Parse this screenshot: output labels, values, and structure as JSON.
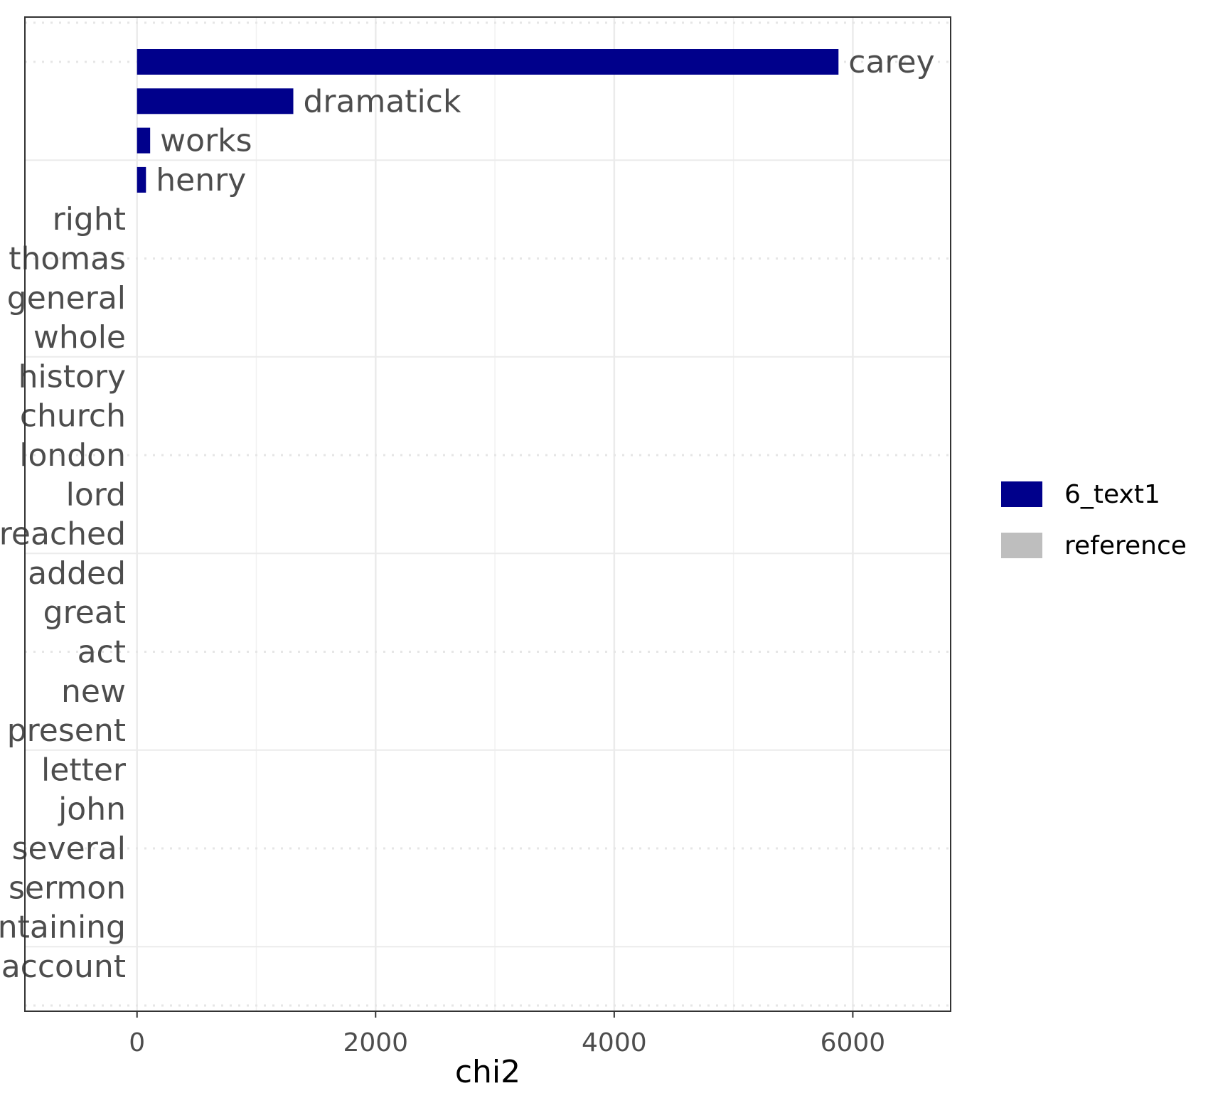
{
  "chart_data": {
    "type": "bar",
    "orientation": "horizontal",
    "xlabel": "chi2",
    "ylabel": "",
    "xlim": [
      -940,
      6820
    ],
    "x_ticks": [
      "0",
      "2000",
      "4000",
      "6000"
    ],
    "x_tick_values": [
      0,
      2000,
      4000,
      6000
    ],
    "grid": true,
    "legend_position": "right",
    "legend": [
      {
        "name": "6_text1",
        "color": "#00008b"
      },
      {
        "name": "reference",
        "color": "#bebebe"
      }
    ],
    "bars": [
      {
        "label": "carey",
        "value": 5880,
        "group": "6_text1"
      },
      {
        "label": "dramatick",
        "value": 1310,
        "group": "6_text1"
      },
      {
        "label": "works",
        "value": 110,
        "group": "6_text1"
      },
      {
        "label": "henry",
        "value": 75,
        "group": "6_text1"
      },
      {
        "label": "right",
        "value": 0,
        "group": "reference"
      },
      {
        "label": "thomas",
        "value": 0,
        "group": "reference"
      },
      {
        "label": "general",
        "value": 0,
        "group": "reference"
      },
      {
        "label": "whole",
        "value": 0,
        "group": "reference"
      },
      {
        "label": "history",
        "value": 0,
        "group": "reference"
      },
      {
        "label": "church",
        "value": 0,
        "group": "reference"
      },
      {
        "label": "london",
        "value": 0,
        "group": "reference"
      },
      {
        "label": "lord",
        "value": 0,
        "group": "reference"
      },
      {
        "label": "preached",
        "value": 0,
        "group": "reference"
      },
      {
        "label": "added",
        "value": 0,
        "group": "reference"
      },
      {
        "label": "great",
        "value": 0,
        "group": "reference"
      },
      {
        "label": "act",
        "value": 0,
        "group": "reference"
      },
      {
        "label": "new",
        "value": 0,
        "group": "reference"
      },
      {
        "label": "present",
        "value": 0,
        "group": "reference"
      },
      {
        "label": "letter",
        "value": 0,
        "group": "reference"
      },
      {
        "label": "john",
        "value": 0,
        "group": "reference"
      },
      {
        "label": "several",
        "value": 0,
        "group": "reference"
      },
      {
        "label": "sermon",
        "value": 0,
        "group": "reference"
      },
      {
        "label": "containing",
        "value": 0,
        "group": "reference"
      },
      {
        "label": "account",
        "value": 0,
        "group": "reference"
      }
    ]
  }
}
